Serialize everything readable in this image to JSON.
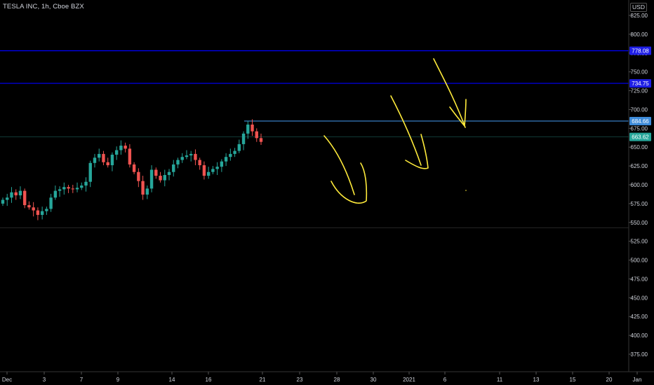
{
  "header": {
    "title": "TESLA INC, 1h, Cboe BZX",
    "currency_badge": "USD"
  },
  "colors": {
    "background": "#000000",
    "up_candle": "#26a69a",
    "down_candle": "#ef5350",
    "level_line": "#0000ff",
    "level_badge_blue": "#1e1ee6",
    "level_badge_lightblue": "#3d8bd9",
    "price_badge_teal": "#26a69a",
    "drawing_yellow": "#ffeb3b",
    "axis_text": "#d1d4dc"
  },
  "chart_data": {
    "type": "candlestick",
    "title": "TESLA INC, 1h, Cboe BZX",
    "ylim": [
      362,
      830
    ],
    "y_ticks": [
      375,
      400,
      425,
      450,
      475,
      500,
      525,
      550,
      575,
      600,
      625,
      650,
      675,
      700,
      725,
      750,
      775,
      800,
      825
    ],
    "x_tick_labels": [
      "Dec",
      "3",
      "7",
      "9",
      "14",
      "16",
      "21",
      "23",
      "28",
      "30",
      "2021",
      "6",
      "11",
      "13",
      "15",
      "20",
      "Jan"
    ],
    "horizontal_levels": [
      {
        "label": "778.08",
        "value": 778.08,
        "style": "blue"
      },
      {
        "label": "734.75",
        "value": 734.75,
        "style": "blue"
      },
      {
        "label": "684.66",
        "value": 684.66,
        "style": "lightblue"
      },
      {
        "label": "663.62",
        "value": 663.62,
        "style": "teal"
      }
    ],
    "candles_close": [
      580,
      583,
      590,
      586,
      592,
      573,
      570,
      566,
      560,
      565,
      568,
      583,
      592,
      594,
      597,
      595,
      594,
      596,
      599,
      604,
      629,
      636,
      641,
      630,
      626,
      640,
      646,
      652,
      648,
      627,
      617,
      605,
      587,
      595,
      620,
      612,
      606,
      613,
      617,
      627,
      633,
      637,
      639,
      641,
      633,
      626,
      612,
      617,
      621,
      624,
      631,
      637,
      641,
      645,
      654,
      668,
      680,
      671,
      662,
      657
    ],
    "grid": false,
    "drawings": "4 freehand yellow arrows pointing down"
  }
}
